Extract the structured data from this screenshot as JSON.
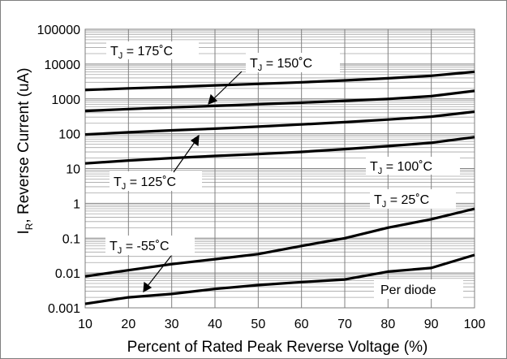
{
  "chart_data": {
    "type": "line",
    "title": "",
    "xlabel": "Percent of Rated Peak Reverse Voltage (%)",
    "ylabel_main": "I",
    "ylabel_sub": "R",
    "ylabel_rest": ", Reverse Current (uA)",
    "x_ticks": [
      "10",
      "20",
      "30",
      "40",
      "50",
      "60",
      "70",
      "80",
      "90",
      "100"
    ],
    "y_ticks": [
      "0.001",
      "0.01",
      "0.1",
      "1",
      "10",
      "100",
      "1000",
      "10000",
      "100000"
    ],
    "xlim": [
      10,
      100
    ],
    "ylim": [
      0.001,
      100000
    ],
    "y_scale": "log",
    "grid": true,
    "x": [
      10,
      20,
      30,
      40,
      50,
      60,
      70,
      80,
      90,
      100
    ],
    "series": [
      {
        "name": "TJ = 175°C",
        "values": [
          1800,
          2000,
          2200,
          2450,
          2700,
          3000,
          3400,
          3900,
          4600,
          6000
        ]
      },
      {
        "name": "TJ = 150°C",
        "values": [
          450,
          510,
          570,
          630,
          700,
          780,
          880,
          1000,
          1200,
          1700
        ]
      },
      {
        "name": "TJ = 125°C",
        "values": [
          95,
          110,
          125,
          140,
          160,
          185,
          215,
          255,
          310,
          430
        ]
      },
      {
        "name": "TJ = 100°C",
        "values": [
          14,
          17,
          20,
          23,
          26,
          30,
          36,
          44,
          55,
          80
        ]
      },
      {
        "name": "TJ = 25°C",
        "values": [
          0.008,
          0.012,
          0.018,
          0.025,
          0.035,
          0.06,
          0.1,
          0.2,
          0.35,
          0.7
        ]
      },
      {
        "name": "TJ = -55°C",
        "values": [
          0.0013,
          0.002,
          0.0025,
          0.0035,
          0.0045,
          0.0055,
          0.0065,
          0.011,
          0.014,
          0.033
        ]
      }
    ],
    "labels": [
      {
        "sub": "J",
        "temp": " = 175˚C"
      },
      {
        "sub": "J",
        "temp": " = 150˚C"
      },
      {
        "sub": "J",
        "temp": " = 125˚C"
      },
      {
        "sub": "J",
        "temp": " = 100˚C"
      },
      {
        "sub": "J",
        "temp": " = 25˚C"
      },
      {
        "sub": "J",
        "temp": " = -55˚C"
      }
    ],
    "label_prefix": "T",
    "annotation": "Per diode",
    "line_color": "#000000",
    "grid_color": "#a6a6a6"
  }
}
